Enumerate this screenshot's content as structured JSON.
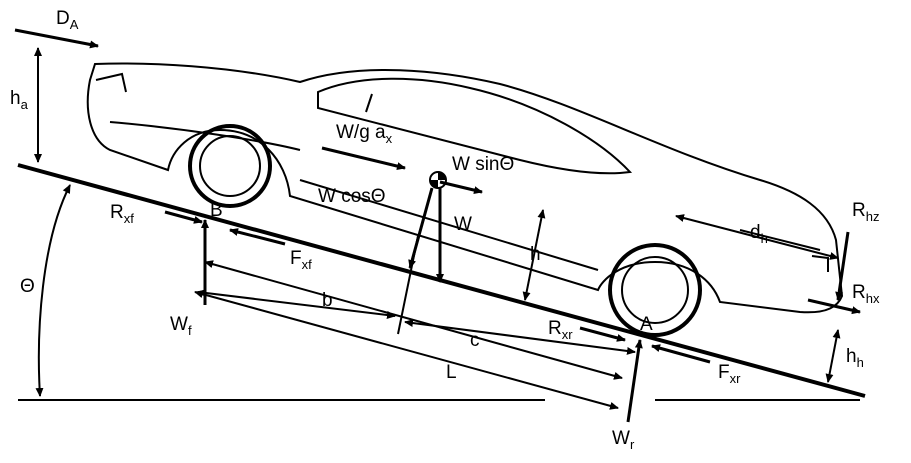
{
  "diagram": {
    "labels": {
      "drag": {
        "main": "D",
        "sub": "A"
      },
      "drag_height": {
        "main": "h",
        "sub": "a"
      },
      "inertia": {
        "main": "W/g a",
        "sub": "x"
      },
      "weight_sin": "W sinΘ",
      "weight_cos": "W cosΘ",
      "weight": "W",
      "cg_height": "h",
      "front_tractive": {
        "main": "R",
        "sub": "xf"
      },
      "front_point": "B",
      "front_rolling": {
        "main": "F",
        "sub": "xf"
      },
      "front_normal": {
        "main": "W",
        "sub": "f"
      },
      "grade": "Θ",
      "dist_b": "b",
      "dist_c": "c",
      "wheelbase": "L",
      "rear_tractive": {
        "main": "R",
        "sub": "xr"
      },
      "rear_point": "A",
      "rear_rolling": {
        "main": "F",
        "sub": "xr"
      },
      "rear_normal": {
        "main": "W",
        "sub": "r"
      },
      "hitch_dist": {
        "main": "d",
        "sub": "h"
      },
      "hitch_vertical": {
        "main": "R",
        "sub": "hz"
      },
      "hitch_horizontal": {
        "main": "R",
        "sub": "hx"
      },
      "hitch_height": {
        "main": "h",
        "sub": "h"
      }
    }
  }
}
